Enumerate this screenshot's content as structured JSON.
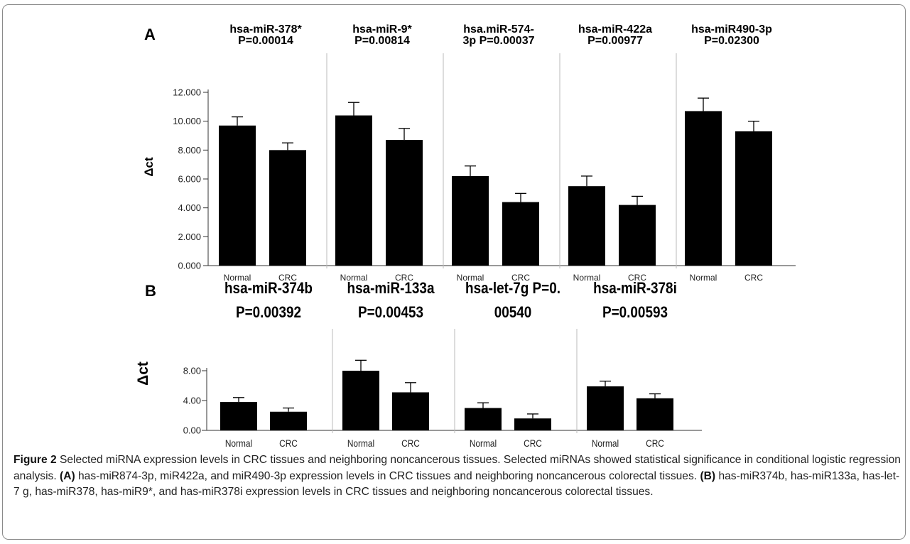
{
  "figure": {
    "panel_a_letter": "A",
    "panel_b_letter": "B",
    "panel_a_ylabel": "Δct",
    "panel_b_ylabel": "Δct"
  },
  "chart_data": [
    {
      "type": "bar",
      "panel": "A",
      "ylabel": "Δct",
      "ylim": [
        0,
        12
      ],
      "yticks": [
        "0.000",
        "2.000",
        "4.000",
        "6.000",
        "8.000",
        "10.000",
        "12.000"
      ],
      "grid": false,
      "categories": [
        "Normal",
        "CRC"
      ],
      "subplots": [
        {
          "title_line1": "hsa-miR-378*",
          "title_line2": "P=0.00014",
          "values": [
            9.7,
            8.0
          ],
          "errors": [
            0.6,
            0.5
          ]
        },
        {
          "title_line1": "hsa-miR-9*",
          "title_line2": "P=0.00814",
          "values": [
            10.4,
            8.7
          ],
          "errors": [
            0.9,
            0.8
          ]
        },
        {
          "title_line1": "hsa.miR-574-",
          "title_line2": "3p P=0.00037",
          "values": [
            6.2,
            4.4
          ],
          "errors": [
            0.7,
            0.6
          ]
        },
        {
          "title_line1": "hsa-miR-422a",
          "title_line2": "P=0.00977",
          "values": [
            5.5,
            4.2
          ],
          "errors": [
            0.7,
            0.6
          ]
        },
        {
          "title_line1": "hsa-miR490-3p",
          "title_line2": "P=0.02300",
          "values": [
            10.7,
            9.3
          ],
          "errors": [
            0.9,
            0.7
          ]
        }
      ]
    },
    {
      "type": "bar",
      "panel": "B",
      "ylabel": "Δct",
      "ylim": [
        0,
        10
      ],
      "yticks": [
        "0.00",
        "4.00",
        "8.00"
      ],
      "grid": false,
      "categories": [
        "Normal",
        "CRC"
      ],
      "subplots": [
        {
          "title_line1": "hsa-miR-374b",
          "title_line2": "P=0.00392",
          "values": [
            3.8,
            2.5
          ],
          "errors": [
            0.6,
            0.5
          ]
        },
        {
          "title_line1": "hsa-miR-133a",
          "title_line2": "P=0.00453",
          "values": [
            8.0,
            5.1
          ],
          "errors": [
            1.4,
            1.3
          ]
        },
        {
          "title_line1": "hsa-let-7g P=0.",
          "title_line2": "00540",
          "values": [
            3.0,
            1.6
          ],
          "errors": [
            0.7,
            0.6
          ]
        },
        {
          "title_line1": "hsa-miR-378i",
          "title_line2": "P=0.00593",
          "values": [
            5.9,
            4.3
          ],
          "errors": [
            0.7,
            0.6
          ]
        }
      ]
    }
  ],
  "caption": {
    "label": "Figure 2",
    "text1": " Selected miRNA expression levels in CRC tissues and neighboring noncancerous tissues. Selected miRNAs showed statistical significance in conditional logistic regression analysis. ",
    "ref_a": "(A)",
    "text2": " has-miR874-3p, miR422a, and miR490-3p expression levels in CRC tissues and neighboring noncancerous colorectal tissues. ",
    "ref_b": "(B)",
    "text3": " has-miR374b, has-miR133a, has-let-7 g, has-miR378, has-miR9*, and has-miR378i expression levels in CRC tissues and neighboring noncancerous colorectal tissues."
  }
}
